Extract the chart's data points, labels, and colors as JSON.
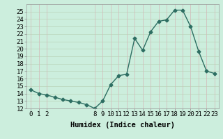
{
  "xlabel": "Humidex (Indice chaleur)",
  "x_values": [
    0,
    1,
    2,
    3,
    4,
    5,
    6,
    7,
    8,
    9,
    10,
    11,
    12,
    13,
    14,
    15,
    16,
    17,
    18,
    19,
    20,
    21,
    22,
    23
  ],
  "y_values": [
    14.5,
    14.0,
    13.8,
    13.5,
    13.2,
    13.0,
    12.8,
    12.5,
    12.0,
    13.0,
    15.2,
    16.4,
    16.6,
    21.4,
    19.8,
    22.3,
    23.7,
    23.9,
    25.2,
    25.2,
    23.0,
    19.7,
    17.0,
    16.7
  ],
  "line_color": "#2d6e62",
  "marker": "D",
  "marker_size": 2.5,
  "bg_color": "#cceedd",
  "grid_color_v": "#d4b8b8",
  "grid_color_h": "#b8d4b8",
  "ylim": [
    12,
    26
  ],
  "xlim": [
    -0.5,
    23.5
  ],
  "yticks": [
    12,
    13,
    14,
    15,
    16,
    17,
    18,
    19,
    20,
    21,
    22,
    23,
    24,
    25
  ],
  "xticks": [
    0,
    1,
    2,
    8,
    9,
    10,
    11,
    12,
    13,
    14,
    15,
    16,
    17,
    18,
    19,
    20,
    21,
    22,
    23
  ],
  "xlabel_fontsize": 7.5,
  "tick_fontsize": 6.5,
  "line_width": 1.0
}
